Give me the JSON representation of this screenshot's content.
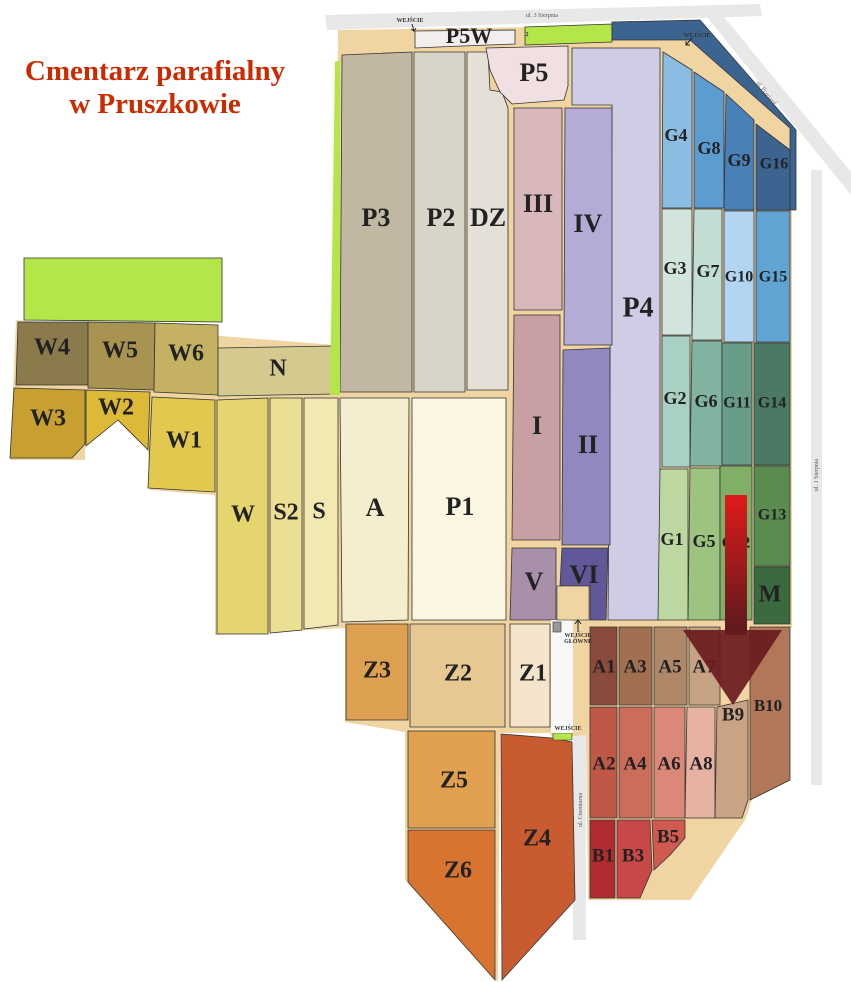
{
  "title": {
    "line1": "Cmentarz parafialny",
    "line2": "w Pruszkowie"
  },
  "streets": {
    "top": "ul. 3 Sierpnia",
    "diagonal": "ul. Przejazd",
    "right": "ul. 1 Sierpnia",
    "bottom": "ul. Cmentarna"
  },
  "entrances": {
    "top_left": "WEJŚCIE",
    "top_right": "WEJŚCIE",
    "main_1": "WEJŚCIE",
    "main_2": "GŁÓWNE",
    "bottom": "WEJŚCIE"
  },
  "marker_number": "2",
  "colors": {
    "alley": "#f0d4a2",
    "road": "#e8e8e8",
    "green": "#b4e64a",
    "arrow": "#d41818",
    "title": "#cc2a00"
  },
  "arrow_icon": "down-arrow",
  "sections": [
    {
      "label": "W4",
      "color": "#8a7a4c"
    },
    {
      "label": "W5",
      "color": "#a89450"
    },
    {
      "label": "W6",
      "color": "#c4b262"
    },
    {
      "label": "N",
      "color": "#d4c98e"
    },
    {
      "label": "W3",
      "color": "#c8a032"
    },
    {
      "label": "W2",
      "color": "#dcb937"
    },
    {
      "label": "W1",
      "color": "#e2c84e"
    },
    {
      "label": "W",
      "color": "#e4d56e"
    },
    {
      "label": "S2",
      "color": "#ebdf92"
    },
    {
      "label": "S",
      "color": "#f2e8b2"
    },
    {
      "label": "A",
      "color": "#f5eece"
    },
    {
      "label": "P1",
      "color": "#faf6e2"
    },
    {
      "label": "P3",
      "color": "#c0b8a2"
    },
    {
      "label": "P2",
      "color": "#d8d5c8"
    },
    {
      "label": "DZ",
      "color": "#e4e0d8"
    },
    {
      "label": "P5W",
      "color": "#f2eeee"
    },
    {
      "label": "P5",
      "color": "#f0e0e2"
    },
    {
      "label": "P4",
      "color": "#cfcde6"
    },
    {
      "label": "III",
      "color": "#d9b8bc"
    },
    {
      "label": "IV",
      "color": "#b4acd6"
    },
    {
      "label": "I",
      "color": "#c8a0a4"
    },
    {
      "label": "II",
      "color": "#9088be"
    },
    {
      "label": "V",
      "color": "#a890aa"
    },
    {
      "label": "VI",
      "color": "#605898"
    },
    {
      "label": "G4",
      "color": "#8bbde2"
    },
    {
      "label": "G3",
      "color": "#d2e4de"
    },
    {
      "label": "G2",
      "color": "#a8d0c4"
    },
    {
      "label": "G1",
      "color": "#bcd8a0"
    },
    {
      "label": "G8",
      "color": "#5c9cd0"
    },
    {
      "label": "G7",
      "color": "#c2ddd4"
    },
    {
      "label": "G6",
      "color": "#80b4a0"
    },
    {
      "label": "G5",
      "color": "#9cc480"
    },
    {
      "label": "G9",
      "color": "#4a80b8"
    },
    {
      "label": "G10",
      "color": "#b2d6f2"
    },
    {
      "label": "G11",
      "color": "#689c88"
    },
    {
      "label": "G12",
      "color": "#80b068"
    },
    {
      "label": "G16",
      "color": "#3c6490"
    },
    {
      "label": "G15",
      "color": "#60a4d4"
    },
    {
      "label": "G14",
      "color": "#4a7a64"
    },
    {
      "label": "G13",
      "color": "#5a8c50"
    },
    {
      "label": "M",
      "color": "#3c6a40"
    },
    {
      "label": "A1",
      "color": "#8a4a3c"
    },
    {
      "label": "A3",
      "color": "#a07050"
    },
    {
      "label": "A5",
      "color": "#b08868"
    },
    {
      "label": "A7",
      "color": "#c4a282"
    },
    {
      "label": "A2",
      "color": "#c05848"
    },
    {
      "label": "A4",
      "color": "#cc6c5a"
    },
    {
      "label": "A6",
      "color": "#dc8878"
    },
    {
      "label": "A8",
      "color": "#e6b2a2"
    },
    {
      "label": "B9",
      "color": "#caa284"
    },
    {
      "label": "B10",
      "color": "#b07858"
    },
    {
      "label": "B1",
      "color": "#b02c30"
    },
    {
      "label": "B3",
      "color": "#c84848"
    },
    {
      "label": "B5",
      "color": "#d05a50"
    },
    {
      "label": "Z3",
      "color": "#dca050"
    },
    {
      "label": "Z2",
      "color": "#e8c892"
    },
    {
      "label": "Z1",
      "color": "#f4e4cc"
    },
    {
      "label": "Z5",
      "color": "#e0a050"
    },
    {
      "label": "Z6",
      "color": "#d87430"
    },
    {
      "label": "Z4",
      "color": "#c85c30"
    }
  ]
}
